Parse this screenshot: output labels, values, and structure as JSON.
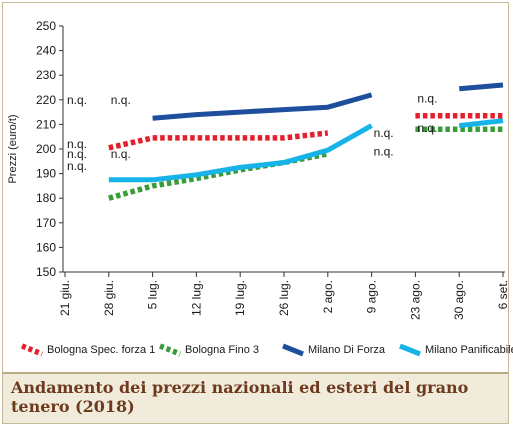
{
  "chart_data": {
    "type": "line",
    "title": "Andamento dei prezzi nazionali ed esteri del grano tenero (2018)",
    "ylabel": "Prezzi (euro/t)",
    "xlabel": "",
    "ylim": [
      150,
      250
    ],
    "yticks": [
      150,
      160,
      170,
      180,
      190,
      200,
      210,
      220,
      230,
      240,
      250
    ],
    "grid": false,
    "legend_position": "bottom",
    "categories": [
      "21 giu.",
      "28 giu.",
      "5 lug.",
      "12 lug.",
      "19 lug.",
      "26 lug.",
      "2 ago.",
      "9 ago.",
      "23 ago.",
      "30 ago.",
      "6 set."
    ],
    "series": [
      {
        "name": "Bologna Spec. forza 1",
        "color": "#e3202b",
        "style": "dashed",
        "values": [
          null,
          200.5,
          204.5,
          204.5,
          204.5,
          204.5,
          206.5,
          null,
          213.5,
          213.5,
          213.5
        ]
      },
      {
        "name": "Bologna Fino 3",
        "color": "#3a9b3a",
        "style": "dashed",
        "values": [
          null,
          180,
          185,
          188,
          191.5,
          194.5,
          198,
          null,
          208,
          208,
          208
        ]
      },
      {
        "name": "Milano Di Forza",
        "color": "#1e4f9c",
        "style": "solid",
        "values": [
          null,
          null,
          212.5,
          214,
          215,
          216,
          217,
          222,
          null,
          224.5,
          226
        ]
      },
      {
        "name": "Milano Panificabile",
        "color": "#16b3e8",
        "style": "solid",
        "values": [
          null,
          187.5,
          187.5,
          189.5,
          192.5,
          194.5,
          199.5,
          209.5,
          null,
          209.5,
          211.5
        ]
      }
    ],
    "annotations": [
      {
        "text": "n.q.",
        "x": "21 giu.",
        "y": 220
      },
      {
        "text": "n.q.",
        "x": "28 giu.",
        "y": 220
      },
      {
        "text": "n.q.",
        "x": "21 giu.",
        "y": 202
      },
      {
        "text": "n.q.",
        "x": "21 giu.",
        "y": 198
      },
      {
        "text": "n.q.",
        "x": "28 giu.",
        "y": 198
      },
      {
        "text": "n.q.",
        "x": "21 giu.",
        "y": 193
      },
      {
        "text": "n.q.",
        "x": "23 ago.",
        "y": 220.5
      },
      {
        "text": "n.q.",
        "x": "23 ago.",
        "y": 208.5
      },
      {
        "text": "n.q.",
        "x": "9 ago.",
        "y": 206.5
      },
      {
        "text": "n.q.",
        "x": "9 ago.",
        "y": 199
      }
    ]
  }
}
